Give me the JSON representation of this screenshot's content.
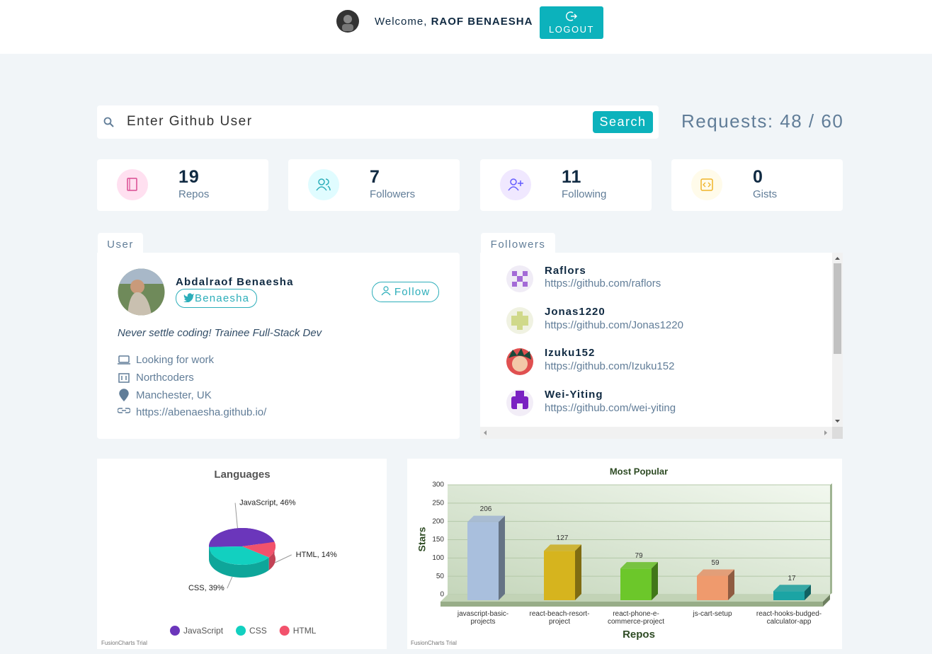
{
  "header": {
    "welcome": "Welcome,",
    "user": "RAOF BENAESHA",
    "logout": "LOGOUT"
  },
  "search": {
    "placeholder": "Enter Github User",
    "button": "Search",
    "requests": "Requests: 48 / 60"
  },
  "stats": [
    {
      "value": 19,
      "label": "Repos"
    },
    {
      "value": 7,
      "label": "Followers"
    },
    {
      "value": 11,
      "label": "Following"
    },
    {
      "value": 0,
      "label": "Gists"
    }
  ],
  "user": {
    "tab": "User",
    "name": "Abdalraof Benaesha",
    "twitter": "Benaesha",
    "follow": "Follow",
    "bio": "Never settle coding! Trainee Full-Stack Dev",
    "hireable": "Looking for work",
    "company": "Northcoders",
    "location": "Manchester, UK",
    "blog": "https://abenaesha.github.io/"
  },
  "followers": {
    "tab": "Followers",
    "items": [
      {
        "login": "Raflors",
        "url": "https://github.com/raflors"
      },
      {
        "login": "Jonas1220",
        "url": "https://github.com/Jonas1220"
      },
      {
        "login": "Izuku152",
        "url": "https://github.com/Izuku152"
      },
      {
        "login": "Wei-Yiting",
        "url": "https://github.com/wei-yiting"
      }
    ]
  },
  "chart_data": [
    {
      "type": "pie",
      "title": "Languages",
      "categories": [
        "JavaScript",
        "CSS",
        "HTML"
      ],
      "values": [
        46,
        39,
        14
      ],
      "value_labels": [
        "JavaScript, 46%",
        "CSS, 39%",
        "HTML, 14%"
      ],
      "colors": [
        "#6b36bb",
        "#12d0c0",
        "#f2526c"
      ],
      "legend": "bottom",
      "credit": "FusionCharts Trial"
    },
    {
      "type": "bar",
      "title": "Most Popular",
      "xlabel": "Repos",
      "ylabel": "Stars",
      "categories": [
        "javascript-basic-projects",
        "react-beach-resort-project",
        "react-phone-e-commerce-project",
        "js-cart-setup",
        "react-hooks-budged-calculator-app"
      ],
      "values": [
        206,
        127,
        79,
        59,
        17
      ],
      "colors": [
        "#a9bfdd",
        "#d6b41e",
        "#6cc72a",
        "#ef9a6d",
        "#1ba4a4"
      ],
      "ylim": [
        0,
        300
      ],
      "yticks": [
        0,
        50,
        100,
        150,
        200,
        250,
        300
      ],
      "grid": true,
      "credit": "FusionCharts Trial"
    }
  ]
}
